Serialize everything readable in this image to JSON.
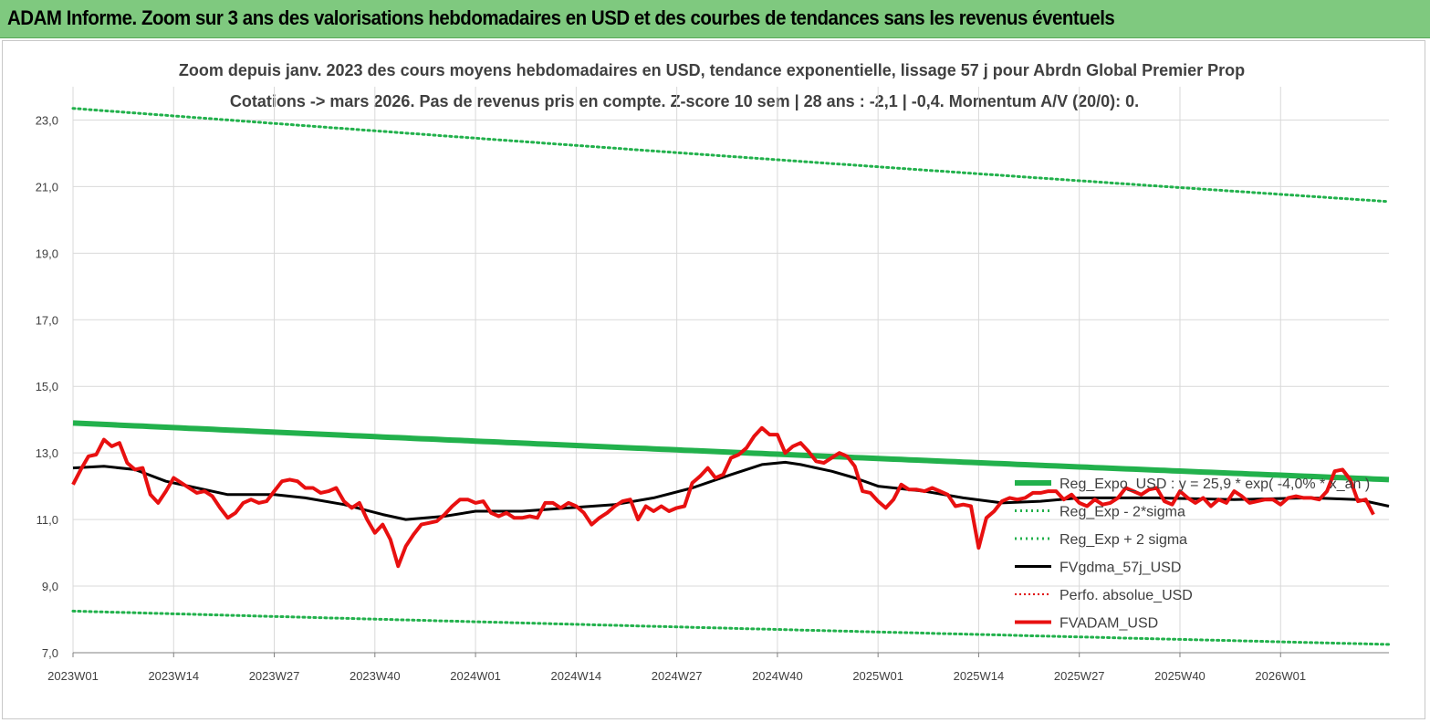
{
  "banner": {
    "title": "ADAM Informe. Zoom sur 3 ans des valorisations hebdomadaires en USD et des courbes de tendances sans les revenus éventuels"
  },
  "colors": {
    "banner_bg": "#7fc97f",
    "trend_green": "#22b14c",
    "band_green": "#22b14c",
    "gdma_black": "#000000",
    "perfo_red": "#e00000",
    "price_red": "#e81010"
  },
  "chart_data": {
    "type": "line",
    "title": "Zoom depuis janv. 2023 des cours moyens hebdomadaires en USD, tendance exponentielle, lissage 57 j pour Abrdn Global Premier Prop",
    "subtitle": "Cotations -> mars 2026. Pas de revenus pris en compte. Z-score 10 sem | 28 ans : -2,1 | -0,4. Momentum A/V (20/0): 0.",
    "ylim": [
      7.0,
      24.0
    ],
    "yticks": [
      "7,0",
      "9,0",
      "11,0",
      "13,0",
      "15,0",
      "17,0",
      "19,0",
      "21,0",
      "23,0"
    ],
    "ytick_values": [
      7,
      9,
      11,
      13,
      15,
      17,
      19,
      21,
      23
    ],
    "xticks": [
      "2023W01",
      "2023W14",
      "2023W27",
      "2023W40",
      "2024W01",
      "2024W14",
      "2024W27",
      "2024W40",
      "2025W01",
      "2025W14",
      "2025W27",
      "2025W40",
      "2026W01"
    ],
    "xtick_index": [
      0,
      13,
      26,
      39,
      52,
      65,
      78,
      91,
      104,
      117,
      130,
      143,
      156
    ],
    "n_weeks": 170,
    "legend": [
      {
        "name": "Reg_Expo_USD : y = 25,9 * exp( -4,0% * x_an )",
        "style": "thick-green"
      },
      {
        "name": "Reg_Exp - 2*sigma",
        "style": "dotted-green"
      },
      {
        "name": "Reg_Exp + 2 sigma",
        "style": "dotted-green"
      },
      {
        "name": "FVgdma_57j_USD",
        "style": "solid-black"
      },
      {
        "name": "Perfo. absolue_USD",
        "style": "dotted-red"
      },
      {
        "name": "FVADAM_USD",
        "style": "thick-red"
      }
    ],
    "series": [
      {
        "name": "Reg_Expo_USD : y = 25,9 * exp( -4,0% * x_an )",
        "start": 13.9,
        "end": 12.2
      },
      {
        "name": "Reg_Exp - 2*sigma",
        "start": 8.25,
        "end": 7.25
      },
      {
        "name": "Reg_Exp + 2 sigma",
        "start": 23.35,
        "end": 20.55
      },
      {
        "name": "FVgdma_57j_USD",
        "points": [
          [
            0,
            12.55
          ],
          [
            4,
            12.6
          ],
          [
            8,
            12.5
          ],
          [
            12,
            12.15
          ],
          [
            16,
            11.95
          ],
          [
            20,
            11.75
          ],
          [
            26,
            11.75
          ],
          [
            30,
            11.65
          ],
          [
            35,
            11.45
          ],
          [
            40,
            11.15
          ],
          [
            43,
            11.0
          ],
          [
            48,
            11.1
          ],
          [
            52,
            11.25
          ],
          [
            58,
            11.25
          ],
          [
            64,
            11.35
          ],
          [
            70,
            11.45
          ],
          [
            75,
            11.65
          ],
          [
            80,
            11.95
          ],
          [
            85,
            12.35
          ],
          [
            89,
            12.65
          ],
          [
            92,
            12.72
          ],
          [
            94,
            12.65
          ],
          [
            98,
            12.45
          ],
          [
            101,
            12.25
          ],
          [
            104,
            12.0
          ],
          [
            110,
            11.85
          ],
          [
            115,
            11.65
          ],
          [
            120,
            11.5
          ],
          [
            125,
            11.55
          ],
          [
            130,
            11.65
          ],
          [
            140,
            11.65
          ],
          [
            150,
            11.6
          ],
          [
            160,
            11.65
          ],
          [
            166,
            11.6
          ],
          [
            170,
            11.4
          ]
        ]
      },
      {
        "name": "FVADAM_USD",
        "points": [
          [
            0,
            12.05
          ],
          [
            1,
            12.5
          ],
          [
            2,
            12.9
          ],
          [
            3,
            12.95
          ],
          [
            4,
            13.4
          ],
          [
            5,
            13.2
          ],
          [
            6,
            13.3
          ],
          [
            7,
            12.7
          ],
          [
            8,
            12.5
          ],
          [
            9,
            12.55
          ],
          [
            10,
            11.75
          ],
          [
            11,
            11.5
          ],
          [
            12,
            11.85
          ],
          [
            13,
            12.25
          ],
          [
            14,
            12.1
          ],
          [
            15,
            11.95
          ],
          [
            16,
            11.8
          ],
          [
            17,
            11.85
          ],
          [
            18,
            11.7
          ],
          [
            19,
            11.35
          ],
          [
            20,
            11.05
          ],
          [
            21,
            11.2
          ],
          [
            22,
            11.5
          ],
          [
            23,
            11.6
          ],
          [
            24,
            11.5
          ],
          [
            25,
            11.55
          ],
          [
            26,
            11.85
          ],
          [
            27,
            12.15
          ],
          [
            28,
            12.2
          ],
          [
            29,
            12.15
          ],
          [
            30,
            11.95
          ],
          [
            31,
            11.95
          ],
          [
            32,
            11.8
          ],
          [
            33,
            11.85
          ],
          [
            34,
            11.95
          ],
          [
            35,
            11.55
          ],
          [
            36,
            11.35
          ],
          [
            37,
            11.5
          ],
          [
            38,
            11.0
          ],
          [
            39,
            10.6
          ],
          [
            40,
            10.85
          ],
          [
            41,
            10.4
          ],
          [
            42,
            9.6
          ],
          [
            43,
            10.2
          ],
          [
            44,
            10.55
          ],
          [
            45,
            10.85
          ],
          [
            46,
            10.9
          ],
          [
            47,
            10.95
          ],
          [
            48,
            11.15
          ],
          [
            49,
            11.4
          ],
          [
            50,
            11.6
          ],
          [
            51,
            11.6
          ],
          [
            52,
            11.5
          ],
          [
            53,
            11.55
          ],
          [
            54,
            11.2
          ],
          [
            55,
            11.1
          ],
          [
            56,
            11.2
          ],
          [
            57,
            11.05
          ],
          [
            58,
            11.05
          ],
          [
            59,
            11.1
          ],
          [
            60,
            11.05
          ],
          [
            61,
            11.5
          ],
          [
            62,
            11.5
          ],
          [
            63,
            11.35
          ],
          [
            64,
            11.5
          ],
          [
            65,
            11.4
          ],
          [
            66,
            11.2
          ],
          [
            67,
            10.85
          ],
          [
            68,
            11.05
          ],
          [
            69,
            11.2
          ],
          [
            70,
            11.4
          ],
          [
            71,
            11.55
          ],
          [
            72,
            11.6
          ],
          [
            73,
            11.0
          ],
          [
            74,
            11.4
          ],
          [
            75,
            11.25
          ],
          [
            76,
            11.4
          ],
          [
            77,
            11.25
          ],
          [
            78,
            11.35
          ],
          [
            79,
            11.4
          ],
          [
            80,
            12.1
          ],
          [
            81,
            12.3
          ],
          [
            82,
            12.55
          ],
          [
            83,
            12.25
          ],
          [
            84,
            12.35
          ],
          [
            85,
            12.85
          ],
          [
            86,
            12.95
          ],
          [
            87,
            13.15
          ],
          [
            88,
            13.5
          ],
          [
            89,
            13.75
          ],
          [
            90,
            13.55
          ],
          [
            91,
            13.55
          ],
          [
            92,
            13.0
          ],
          [
            93,
            13.2
          ],
          [
            94,
            13.3
          ],
          [
            95,
            13.05
          ],
          [
            96,
            12.75
          ],
          [
            97,
            12.7
          ],
          [
            98,
            12.85
          ],
          [
            99,
            13.0
          ],
          [
            100,
            12.9
          ],
          [
            101,
            12.6
          ],
          [
            102,
            11.85
          ],
          [
            103,
            11.8
          ],
          [
            104,
            11.55
          ],
          [
            105,
            11.35
          ],
          [
            106,
            11.6
          ],
          [
            107,
            12.05
          ],
          [
            108,
            11.9
          ],
          [
            109,
            11.9
          ],
          [
            110,
            11.85
          ],
          [
            111,
            11.95
          ],
          [
            112,
            11.85
          ],
          [
            113,
            11.75
          ],
          [
            114,
            11.4
          ],
          [
            115,
            11.45
          ],
          [
            116,
            11.4
          ],
          [
            117,
            10.15
          ],
          [
            118,
            11.05
          ],
          [
            119,
            11.25
          ],
          [
            120,
            11.55
          ],
          [
            121,
            11.65
          ],
          [
            122,
            11.6
          ],
          [
            123,
            11.65
          ],
          [
            124,
            11.8
          ],
          [
            125,
            11.8
          ],
          [
            126,
            11.85
          ],
          [
            127,
            11.85
          ],
          [
            128,
            11.6
          ],
          [
            129,
            11.75
          ],
          [
            130,
            11.5
          ],
          [
            131,
            11.4
          ],
          [
            132,
            11.6
          ],
          [
            133,
            11.45
          ],
          [
            134,
            11.5
          ],
          [
            135,
            11.65
          ],
          [
            136,
            11.95
          ],
          [
            137,
            11.85
          ],
          [
            138,
            11.75
          ],
          [
            139,
            11.9
          ],
          [
            140,
            11.95
          ],
          [
            141,
            11.55
          ],
          [
            142,
            11.45
          ],
          [
            143,
            11.85
          ],
          [
            144,
            11.65
          ],
          [
            145,
            11.5
          ],
          [
            146,
            11.65
          ],
          [
            147,
            11.4
          ],
          [
            148,
            11.6
          ],
          [
            149,
            11.5
          ],
          [
            150,
            11.85
          ],
          [
            151,
            11.7
          ],
          [
            152,
            11.5
          ],
          [
            153,
            11.55
          ],
          [
            154,
            11.6
          ],
          [
            155,
            11.6
          ],
          [
            156,
            11.45
          ],
          [
            157,
            11.65
          ],
          [
            158,
            11.7
          ],
          [
            159,
            11.65
          ],
          [
            160,
            11.65
          ],
          [
            161,
            11.6
          ],
          [
            162,
            11.85
          ],
          [
            163,
            12.45
          ],
          [
            164,
            12.5
          ],
          [
            165,
            12.2
          ],
          [
            166,
            11.55
          ],
          [
            167,
            11.6
          ],
          [
            168,
            11.15
          ]
        ]
      }
    ]
  }
}
